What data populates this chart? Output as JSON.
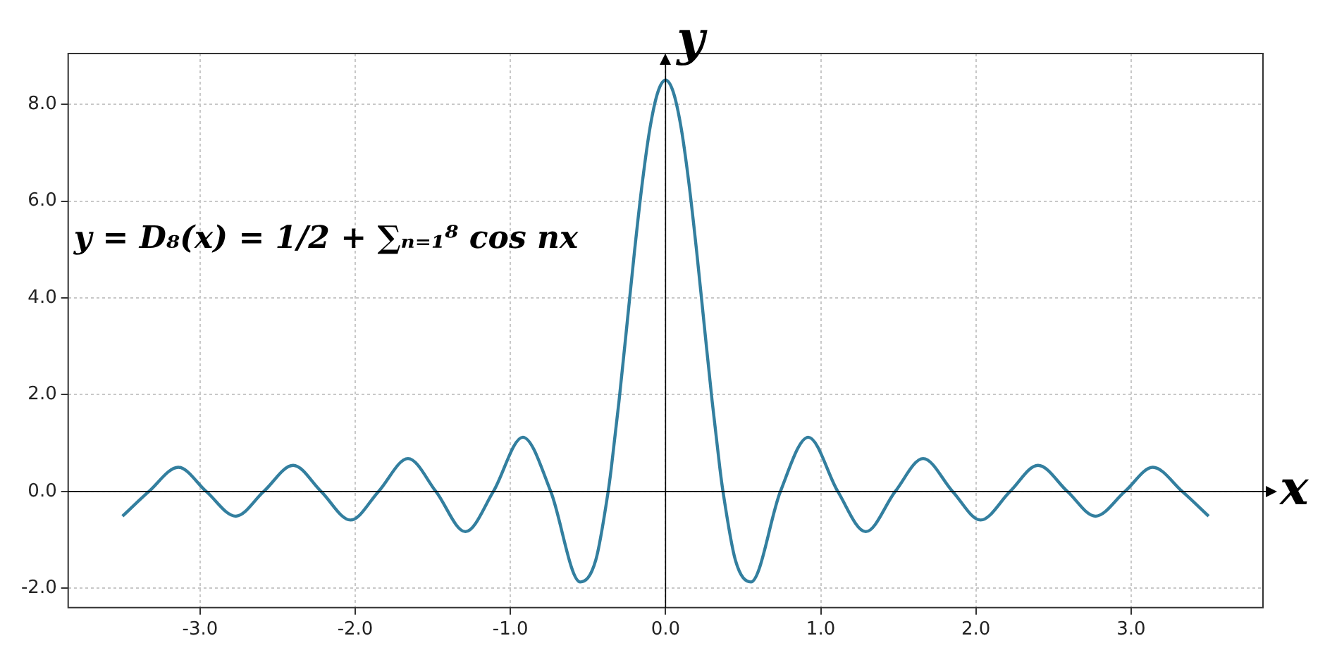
{
  "chart_data": {
    "type": "line",
    "xlabel": "x",
    "ylabel": "y",
    "annotations": [
      "y = D₈(x) = 1/2 + ∑ₙ₌₁⁸ cos nx"
    ],
    "x": [
      -3.5,
      -3.33,
      -3.14,
      -2.96,
      -2.77,
      -2.59,
      -2.4,
      -2.22,
      -2.03,
      -1.85,
      -1.66,
      -1.48,
      -1.29,
      -1.11,
      -0.92,
      -0.74,
      -0.55,
      -0.45,
      -0.37,
      -0.35,
      -0.3,
      -0.25,
      -0.2,
      -0.15,
      -0.1,
      -0.05,
      0,
      0.05,
      0.1,
      0.15,
      0.2,
      0.25,
      0.3,
      0.35,
      0.37,
      0.45,
      0.55,
      0.74,
      0.92,
      1.11,
      1.29,
      1.48,
      1.66,
      1.85,
      2.03,
      2.22,
      2.4,
      2.59,
      2.77,
      2.96,
      3.14,
      3.33,
      3.5
    ],
    "series": [
      {
        "color": "#337f9f",
        "values": [
          -0.51,
          0,
          0.5,
          0,
          -0.51,
          0,
          0.54,
          0,
          -0.59,
          0,
          0.68,
          0,
          -0.83,
          0,
          1.12,
          0,
          -1.87,
          -1.42,
          0,
          0.48,
          1.87,
          3.41,
          4.97,
          6.38,
          7.52,
          8.25,
          8.5,
          8.25,
          7.52,
          6.38,
          4.97,
          3.41,
          1.87,
          0.48,
          0,
          -1.42,
          -1.87,
          0,
          1.12,
          0,
          -0.83,
          0,
          0.68,
          0,
          -0.59,
          0,
          0.54,
          0,
          -0.51,
          0,
          0.5,
          0,
          -0.51
        ]
      }
    ],
    "xlim": [
      -3.85,
      3.85
    ],
    "ylim": [
      -2.4,
      9.05
    ],
    "xticks": [
      {
        "value": -3,
        "label": "-3.0"
      },
      {
        "value": -2,
        "label": "-2.0"
      },
      {
        "value": -1,
        "label": "-1.0"
      },
      {
        "value": 0,
        "label": "0.0"
      },
      {
        "value": 1,
        "label": "1.0"
      },
      {
        "value": 2,
        "label": "2.0"
      },
      {
        "value": 3,
        "label": "3.0"
      }
    ],
    "yticks": [
      {
        "value": -2,
        "label": "-2.0"
      },
      {
        "value": 0,
        "label": "0.0"
      },
      {
        "value": 2,
        "label": "2.0"
      },
      {
        "value": 4,
        "label": "4.0"
      },
      {
        "value": 6,
        "label": "6.0"
      },
      {
        "value": 8,
        "label": "8.0"
      }
    ],
    "grid": true,
    "marker": "none",
    "line_style": "solid",
    "legend": false
  }
}
